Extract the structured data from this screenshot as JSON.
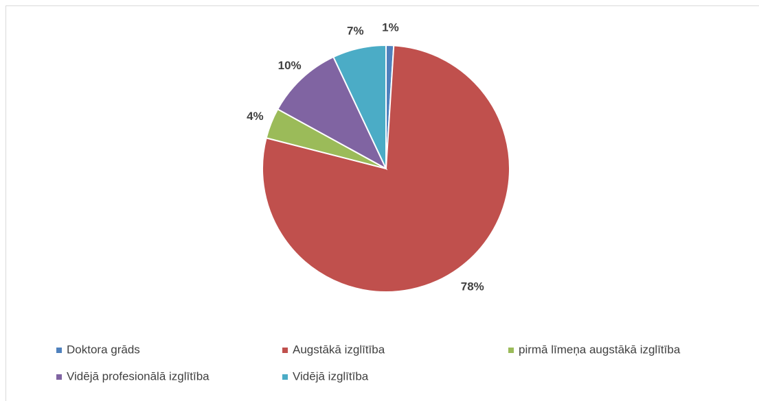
{
  "chart_data": {
    "type": "pie",
    "categories": [
      "Doktora grāds",
      "Augstākā izglītība",
      "pirmā līmeņa augstākā izglītība",
      "Vidējā profesionālā izglītība",
      "Vidējā izglītība"
    ],
    "values": [
      1,
      78,
      4,
      10,
      7
    ],
    "value_labels": [
      "1%",
      "78%",
      "4%",
      "10%",
      "7%"
    ],
    "colors": [
      "#4f81bd",
      "#c0504d",
      "#9bbb59",
      "#8064a2",
      "#4bacc6"
    ],
    "legend": "bottom"
  }
}
